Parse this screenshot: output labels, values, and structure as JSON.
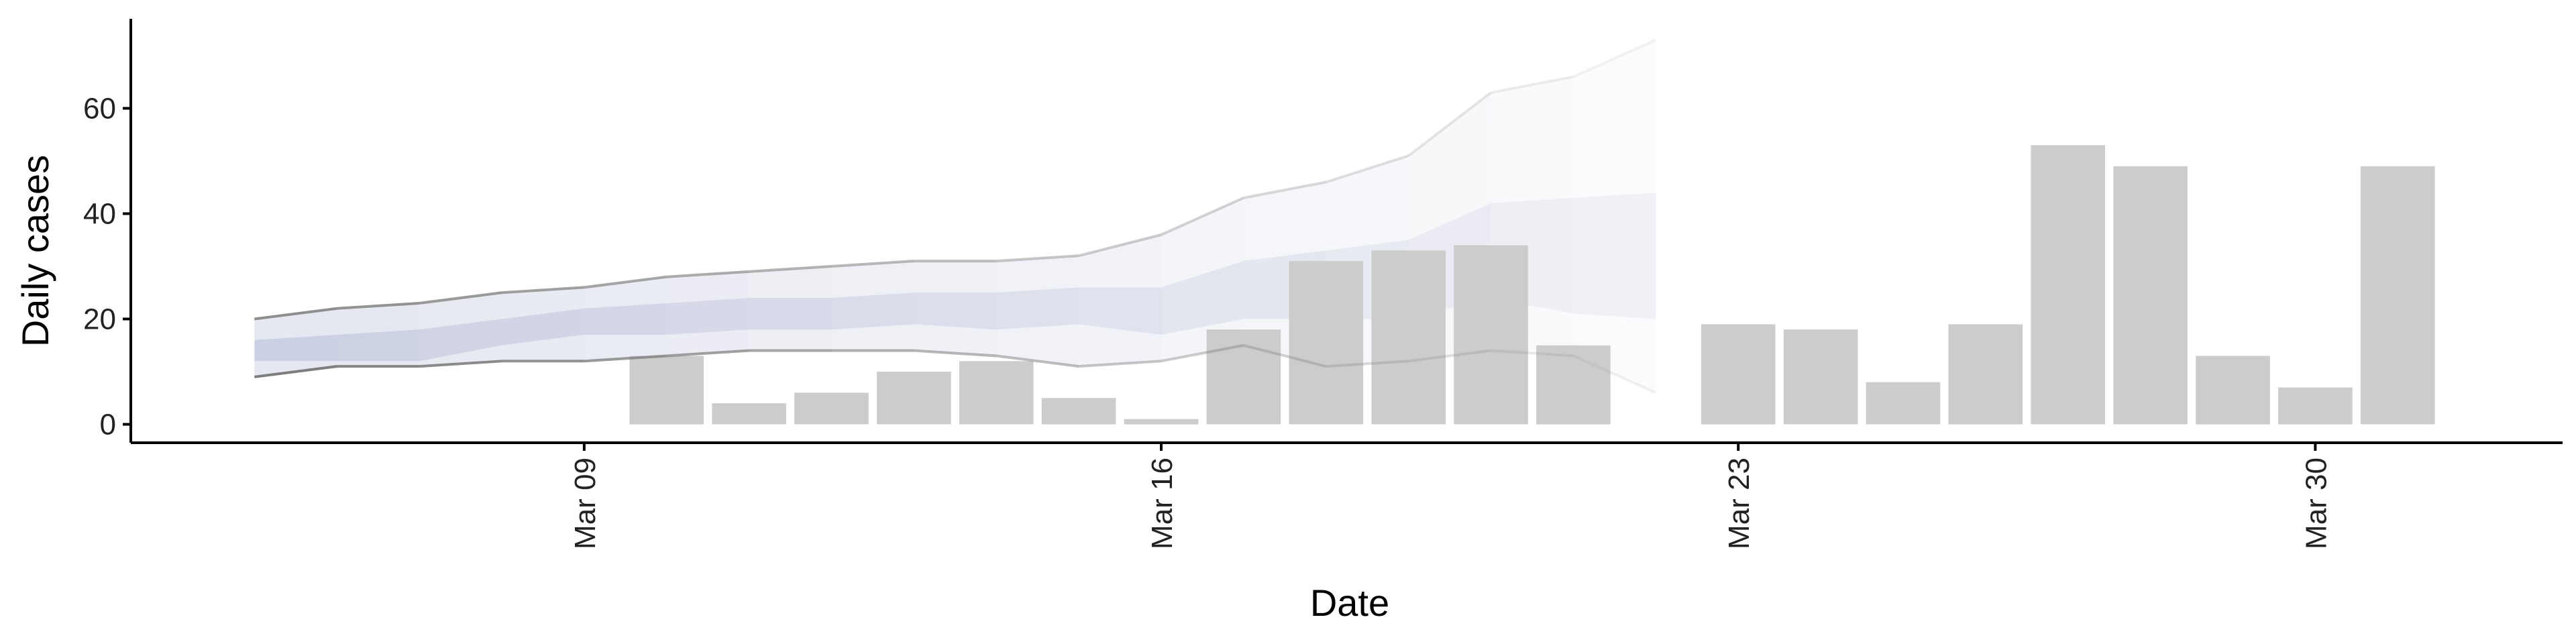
{
  "chart_data": {
    "type": "bar",
    "xlabel": "Date",
    "ylabel": "Daily cases",
    "ylim": [
      -3.5,
      77
    ],
    "xlim": [
      "2020-03-03 12:00",
      "2020-04-02 00:00"
    ],
    "x_ticks": [
      {
        "date": "2020-03-09",
        "label": "Mar 09"
      },
      {
        "date": "2020-03-16",
        "label": "Mar 16"
      },
      {
        "date": "2020-03-23",
        "label": "Mar 23"
      },
      {
        "date": "2020-03-30",
        "label": "Mar 30"
      }
    ],
    "y_ticks": [
      0,
      20,
      40,
      60
    ],
    "grid": false,
    "legend": "none",
    "bar_color": "#cccccc",
    "bars": {
      "dates": [
        "2020-03-10",
        "2020-03-11",
        "2020-03-12",
        "2020-03-13",
        "2020-03-14",
        "2020-03-15",
        "2020-03-16",
        "2020-03-17",
        "2020-03-18",
        "2020-03-19",
        "2020-03-20",
        "2020-03-21",
        "2020-03-23",
        "2020-03-24",
        "2020-03-25",
        "2020-03-26",
        "2020-03-27",
        "2020-03-28",
        "2020-03-29",
        "2020-03-30",
        "2020-03-31"
      ],
      "values": [
        13,
        4,
        6,
        10,
        12,
        5,
        1,
        18,
        31,
        33,
        34,
        15,
        19,
        18,
        8,
        19,
        53,
        49,
        13,
        7,
        49
      ]
    },
    "nowcast": {
      "dates": [
        "2020-03-05",
        "2020-03-06",
        "2020-03-07",
        "2020-03-08",
        "2020-03-09",
        "2020-03-10",
        "2020-03-11",
        "2020-03-12",
        "2020-03-13",
        "2020-03-14",
        "2020-03-15",
        "2020-03-16",
        "2020-03-17",
        "2020-03-18",
        "2020-03-19",
        "2020-03-20",
        "2020-03-21",
        "2020-03-22"
      ],
      "outer_upper": [
        20,
        22,
        23,
        25,
        26,
        28,
        29,
        30,
        31,
        31,
        32,
        36,
        43,
        46,
        51,
        63,
        66,
        73
      ],
      "outer_lower": [
        9,
        11,
        11,
        12,
        12,
        13,
        14,
        14,
        14,
        13,
        11,
        12,
        15,
        11,
        12,
        14,
        13,
        6
      ],
      "inner_upper": [
        16,
        17,
        18,
        20,
        22,
        23,
        24,
        24,
        25,
        25,
        26,
        26,
        31,
        33,
        35,
        42,
        43,
        44
      ],
      "inner_lower": [
        12,
        12,
        12,
        15,
        17,
        17,
        18,
        18,
        19,
        18,
        19,
        17,
        20,
        20,
        20,
        24,
        21,
        20
      ],
      "outer_color": "#c5cadf",
      "inner_color": "#b7bdd8",
      "bound_line_color": "#888888"
    }
  }
}
